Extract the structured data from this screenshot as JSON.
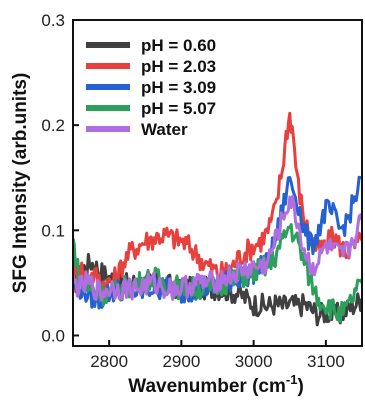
{
  "chart_data": {
    "type": "line",
    "title": "",
    "xlabel": "Wavenumber (cm",
    "xlabel_sup": "-1",
    "xlabel_close": ")",
    "ylabel": "SFG Intensity (arb.units)",
    "xlim": [
      2750,
      3150
    ],
    "ylim": [
      -0.01,
      0.3
    ],
    "x_ticks": [
      2800,
      2900,
      3000,
      3100
    ],
    "y_ticks": [
      0.0,
      0.1,
      0.2,
      0.3
    ],
    "x_tick_labels": [
      "2800",
      "2900",
      "3000",
      "3100"
    ],
    "y_tick_labels": [
      "0.0",
      "0.1",
      "0.2",
      "0.3"
    ],
    "legend_position": "top-left",
    "series": [
      {
        "name": "pH = 0.60",
        "color": "#404040",
        "points": [
          [
            2750,
            0.045
          ],
          [
            2760,
            0.06
          ],
          [
            2775,
            0.07
          ],
          [
            2790,
            0.06
          ],
          [
            2800,
            0.055
          ],
          [
            2820,
            0.05
          ],
          [
            2850,
            0.05
          ],
          [
            2880,
            0.048
          ],
          [
            2900,
            0.045
          ],
          [
            2920,
            0.045
          ],
          [
            2950,
            0.045
          ],
          [
            2980,
            0.04
          ],
          [
            3000,
            0.03
          ],
          [
            3020,
            0.028
          ],
          [
            3030,
            0.03
          ],
          [
            3040,
            0.028
          ],
          [
            3050,
            0.03
          ],
          [
            3060,
            0.028
          ],
          [
            3070,
            0.03
          ],
          [
            3080,
            0.025
          ],
          [
            3090,
            0.02
          ],
          [
            3100,
            0.022
          ],
          [
            3110,
            0.02
          ],
          [
            3120,
            0.02
          ],
          [
            3130,
            0.025
          ],
          [
            3140,
            0.03
          ],
          [
            3150,
            0.035
          ]
        ]
      },
      {
        "name": "pH = 2.03",
        "color": "#e8403d",
        "points": [
          [
            2750,
            0.06
          ],
          [
            2760,
            0.065
          ],
          [
            2770,
            0.055
          ],
          [
            2780,
            0.058
          ],
          [
            2790,
            0.05
          ],
          [
            2800,
            0.05
          ],
          [
            2810,
            0.055
          ],
          [
            2820,
            0.07
          ],
          [
            2830,
            0.08
          ],
          [
            2840,
            0.085
          ],
          [
            2850,
            0.09
          ],
          [
            2860,
            0.092
          ],
          [
            2870,
            0.095
          ],
          [
            2880,
            0.095
          ],
          [
            2890,
            0.092
          ],
          [
            2900,
            0.09
          ],
          [
            2910,
            0.085
          ],
          [
            2920,
            0.078
          ],
          [
            2930,
            0.07
          ],
          [
            2940,
            0.065
          ],
          [
            2950,
            0.06
          ],
          [
            2960,
            0.06
          ],
          [
            2970,
            0.065
          ],
          [
            2980,
            0.075
          ],
          [
            2990,
            0.08
          ],
          [
            3000,
            0.085
          ],
          [
            3010,
            0.09
          ],
          [
            3020,
            0.1
          ],
          [
            3030,
            0.12
          ],
          [
            3040,
            0.16
          ],
          [
            3045,
            0.19
          ],
          [
            3050,
            0.21
          ],
          [
            3055,
            0.19
          ],
          [
            3060,
            0.15
          ],
          [
            3070,
            0.11
          ],
          [
            3080,
            0.09
          ],
          [
            3090,
            0.08
          ],
          [
            3100,
            0.085
          ],
          [
            3110,
            0.095
          ],
          [
            3120,
            0.085
          ],
          [
            3130,
            0.08
          ],
          [
            3140,
            0.085
          ],
          [
            3150,
            0.09
          ]
        ]
      },
      {
        "name": "pH = 3.09",
        "color": "#2461d1",
        "points": [
          [
            2750,
            0.05
          ],
          [
            2760,
            0.045
          ],
          [
            2770,
            0.04
          ],
          [
            2780,
            0.035
          ],
          [
            2790,
            0.035
          ],
          [
            2800,
            0.04
          ],
          [
            2820,
            0.045
          ],
          [
            2840,
            0.04
          ],
          [
            2860,
            0.045
          ],
          [
            2880,
            0.045
          ],
          [
            2900,
            0.04
          ],
          [
            2920,
            0.045
          ],
          [
            2940,
            0.045
          ],
          [
            2960,
            0.05
          ],
          [
            2980,
            0.055
          ],
          [
            3000,
            0.06
          ],
          [
            3020,
            0.07
          ],
          [
            3030,
            0.09
          ],
          [
            3040,
            0.12
          ],
          [
            3050,
            0.15
          ],
          [
            3060,
            0.13
          ],
          [
            3070,
            0.1
          ],
          [
            3080,
            0.085
          ],
          [
            3090,
            0.1
          ],
          [
            3100,
            0.12
          ],
          [
            3110,
            0.115
          ],
          [
            3120,
            0.1
          ],
          [
            3130,
            0.11
          ],
          [
            3140,
            0.13
          ],
          [
            3150,
            0.15
          ]
        ]
      },
      {
        "name": "pH = 5.07",
        "color": "#2ca05a",
        "points": [
          [
            2750,
            0.09
          ],
          [
            2755,
            0.07
          ],
          [
            2760,
            0.05
          ],
          [
            2770,
            0.045
          ],
          [
            2790,
            0.04
          ],
          [
            2800,
            0.04
          ],
          [
            2820,
            0.045
          ],
          [
            2840,
            0.05
          ],
          [
            2860,
            0.055
          ],
          [
            2880,
            0.05
          ],
          [
            2900,
            0.045
          ],
          [
            2920,
            0.045
          ],
          [
            2940,
            0.045
          ],
          [
            2960,
            0.05
          ],
          [
            2980,
            0.055
          ],
          [
            3000,
            0.06
          ],
          [
            3010,
            0.065
          ],
          [
            3020,
            0.065
          ],
          [
            3030,
            0.075
          ],
          [
            3040,
            0.09
          ],
          [
            3050,
            0.105
          ],
          [
            3060,
            0.09
          ],
          [
            3070,
            0.07
          ],
          [
            3080,
            0.05
          ],
          [
            3090,
            0.035
          ],
          [
            3100,
            0.03
          ],
          [
            3110,
            0.025
          ],
          [
            3120,
            0.02
          ],
          [
            3130,
            0.025
          ],
          [
            3140,
            0.04
          ],
          [
            3150,
            0.05
          ]
        ]
      },
      {
        "name": "Water",
        "color": "#b06ee0",
        "points": [
          [
            2750,
            0.05
          ],
          [
            2760,
            0.045
          ],
          [
            2770,
            0.05
          ],
          [
            2780,
            0.045
          ],
          [
            2790,
            0.04
          ],
          [
            2800,
            0.045
          ],
          [
            2820,
            0.045
          ],
          [
            2840,
            0.045
          ],
          [
            2860,
            0.05
          ],
          [
            2880,
            0.045
          ],
          [
            2900,
            0.045
          ],
          [
            2920,
            0.05
          ],
          [
            2940,
            0.05
          ],
          [
            2960,
            0.055
          ],
          [
            2980,
            0.06
          ],
          [
            3000,
            0.065
          ],
          [
            3010,
            0.065
          ],
          [
            3020,
            0.07
          ],
          [
            3030,
            0.09
          ],
          [
            3040,
            0.11
          ],
          [
            3050,
            0.13
          ],
          [
            3060,
            0.11
          ],
          [
            3070,
            0.08
          ],
          [
            3080,
            0.065
          ],
          [
            3090,
            0.07
          ],
          [
            3100,
            0.085
          ],
          [
            3110,
            0.08
          ],
          [
            3120,
            0.075
          ],
          [
            3130,
            0.08
          ],
          [
            3140,
            0.095
          ],
          [
            3150,
            0.11
          ]
        ]
      }
    ]
  }
}
